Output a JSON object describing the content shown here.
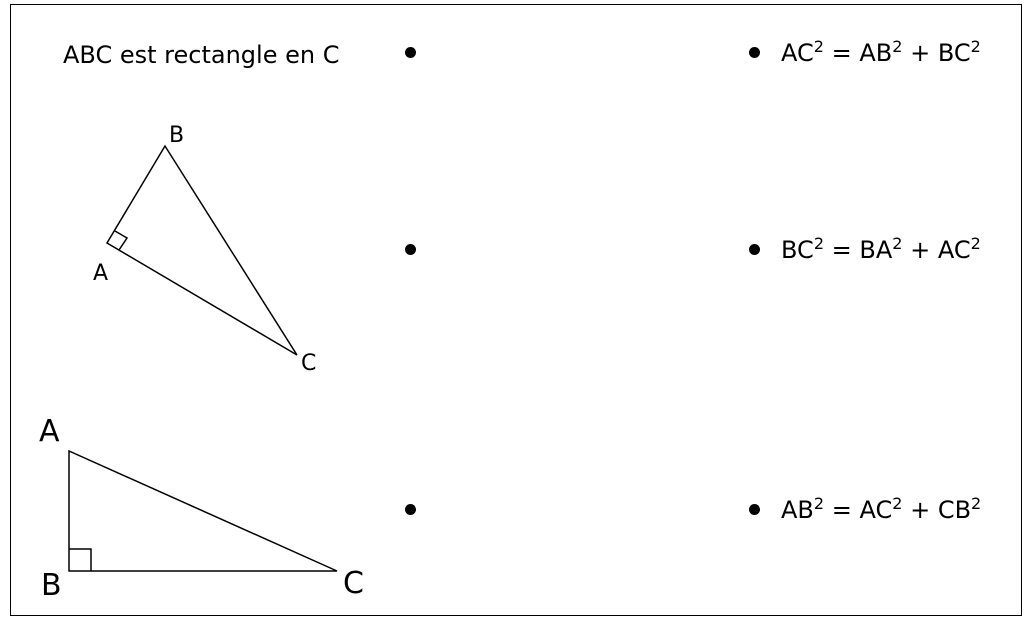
{
  "prompt": "ABC est rectangle en C",
  "formulas": [
    {
      "a": "AC",
      "b": "AB",
      "c": "BC",
      "exp": "2",
      "eq": "=",
      "plus": "+"
    },
    {
      "a": "BC",
      "b": "BA",
      "c": "AC",
      "exp": "2",
      "eq": "=",
      "plus": "+"
    },
    {
      "a": "AB",
      "b": "AC",
      "c": "CB",
      "exp": "2",
      "eq": "=",
      "plus": "+"
    }
  ],
  "figure1": {
    "labels": {
      "a": "A",
      "b": "B",
      "c": "C"
    },
    "right_angle_at": "A"
  },
  "figure2": {
    "labels": {
      "a": "A",
      "b": "B",
      "c": "C"
    },
    "right_angle_at": "B"
  }
}
